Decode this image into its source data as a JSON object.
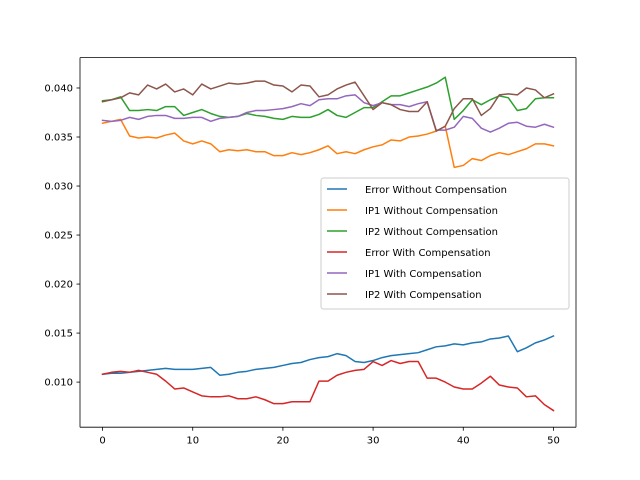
{
  "chart_data": {
    "type": "line",
    "title": "",
    "xlabel": "",
    "ylabel": "",
    "xlim": [
      -2.5,
      52.5
    ],
    "ylim": [
      0.0054,
      0.0431
    ],
    "x_ticks": [
      {
        "value": 0,
        "label": "0"
      },
      {
        "value": 10,
        "label": "10"
      },
      {
        "value": 20,
        "label": "20"
      },
      {
        "value": 30,
        "label": "30"
      },
      {
        "value": 40,
        "label": "40"
      },
      {
        "value": 50,
        "label": "50"
      }
    ],
    "y_ticks": [
      {
        "value": 0.01,
        "label": "0.010"
      },
      {
        "value": 0.015,
        "label": "0.015"
      },
      {
        "value": 0.02,
        "label": "0.020"
      },
      {
        "value": 0.025,
        "label": "0.025"
      },
      {
        "value": 0.03,
        "label": "0.030"
      },
      {
        "value": 0.035,
        "label": "0.035"
      },
      {
        "value": 0.04,
        "label": "0.040"
      }
    ],
    "grid": false,
    "legend_position": "center-right",
    "x": [
      0,
      1,
      2,
      3,
      4,
      5,
      6,
      7,
      8,
      9,
      10,
      11,
      12,
      13,
      14,
      15,
      16,
      17,
      18,
      19,
      20,
      21,
      22,
      23,
      24,
      25,
      26,
      27,
      28,
      29,
      30,
      31,
      32,
      33,
      34,
      35,
      36,
      37,
      38,
      39,
      40,
      41,
      42,
      43,
      44,
      45,
      46,
      47,
      48,
      49,
      50
    ],
    "series": [
      {
        "name": "Error Without Compensation",
        "color": "#1f77b4",
        "values": [
          0.0108,
          0.0109,
          0.0109,
          0.011,
          0.0111,
          0.0112,
          0.0113,
          0.0114,
          0.0113,
          0.0113,
          0.0113,
          0.0114,
          0.0115,
          0.0107,
          0.0108,
          0.011,
          0.0111,
          0.0113,
          0.0114,
          0.0115,
          0.0117,
          0.0119,
          0.012,
          0.0123,
          0.0125,
          0.0126,
          0.0129,
          0.0127,
          0.0121,
          0.012,
          0.0122,
          0.0125,
          0.0127,
          0.0128,
          0.0129,
          0.013,
          0.0133,
          0.0136,
          0.0137,
          0.0139,
          0.0138,
          0.014,
          0.0141,
          0.0144,
          0.0145,
          0.0147,
          0.0131,
          0.0135,
          0.014,
          0.0143,
          0.0147
        ]
      },
      {
        "name": "IP1 Without Compensation",
        "color": "#ff7f0e",
        "values": [
          0.0364,
          0.0366,
          0.0368,
          0.0351,
          0.0349,
          0.035,
          0.0349,
          0.0352,
          0.0354,
          0.0346,
          0.0343,
          0.0346,
          0.0343,
          0.0335,
          0.0337,
          0.0336,
          0.0337,
          0.0335,
          0.0335,
          0.0331,
          0.0331,
          0.0334,
          0.0332,
          0.0334,
          0.0337,
          0.0341,
          0.0333,
          0.0335,
          0.0333,
          0.0337,
          0.034,
          0.0342,
          0.0347,
          0.0346,
          0.035,
          0.0351,
          0.0353,
          0.0356,
          0.0361,
          0.0319,
          0.0321,
          0.0328,
          0.0326,
          0.0331,
          0.0334,
          0.0332,
          0.0335,
          0.0338,
          0.0343,
          0.0343,
          0.0341
        ]
      },
      {
        "name": "IP2 Without Compensation",
        "color": "#2ca02c",
        "values": [
          0.0387,
          0.0388,
          0.0391,
          0.0377,
          0.0377,
          0.0378,
          0.0377,
          0.0381,
          0.0381,
          0.0372,
          0.0375,
          0.0378,
          0.0374,
          0.0371,
          0.037,
          0.0371,
          0.0374,
          0.0372,
          0.0371,
          0.0369,
          0.0368,
          0.0371,
          0.037,
          0.037,
          0.0373,
          0.0378,
          0.0372,
          0.037,
          0.0375,
          0.038,
          0.038,
          0.0386,
          0.0392,
          0.0392,
          0.0395,
          0.0398,
          0.0401,
          0.0405,
          0.0411,
          0.0368,
          0.0377,
          0.0388,
          0.0383,
          0.0388,
          0.0392,
          0.039,
          0.0377,
          0.0379,
          0.0389,
          0.039,
          0.039
        ]
      },
      {
        "name": "Error With Compensation",
        "color": "#d62728",
        "values": [
          0.0108,
          0.011,
          0.0111,
          0.011,
          0.0112,
          0.011,
          0.0108,
          0.0101,
          0.0093,
          0.0094,
          0.009,
          0.0086,
          0.0085,
          0.0085,
          0.0086,
          0.0083,
          0.0083,
          0.0085,
          0.0082,
          0.0078,
          0.0078,
          0.008,
          0.008,
          0.008,
          0.0101,
          0.0101,
          0.0107,
          0.011,
          0.0112,
          0.0113,
          0.0121,
          0.0117,
          0.0122,
          0.0119,
          0.0121,
          0.0121,
          0.0104,
          0.0104,
          0.01,
          0.0095,
          0.0093,
          0.0093,
          0.0099,
          0.0106,
          0.0097,
          0.0095,
          0.0094,
          0.0085,
          0.0086,
          0.0077,
          0.0071
        ]
      },
      {
        "name": "IP1 With Compensation",
        "color": "#9467bd",
        "values": [
          0.0367,
          0.0366,
          0.0367,
          0.037,
          0.0368,
          0.0371,
          0.0372,
          0.0372,
          0.0369,
          0.0369,
          0.037,
          0.037,
          0.0366,
          0.0369,
          0.037,
          0.0371,
          0.0375,
          0.0377,
          0.0377,
          0.0378,
          0.0379,
          0.0381,
          0.0384,
          0.0382,
          0.0388,
          0.0389,
          0.0389,
          0.0392,
          0.0393,
          0.0385,
          0.0382,
          0.0385,
          0.0383,
          0.0383,
          0.0381,
          0.0384,
          0.0386,
          0.0357,
          0.0357,
          0.036,
          0.0371,
          0.0369,
          0.0359,
          0.0355,
          0.0359,
          0.0364,
          0.0365,
          0.0361,
          0.036,
          0.0363,
          0.036
        ]
      },
      {
        "name": "IP2 With Compensation",
        "color": "#8c564b",
        "values": [
          0.0386,
          0.0388,
          0.039,
          0.0395,
          0.0393,
          0.0403,
          0.0399,
          0.0404,
          0.0396,
          0.0399,
          0.0393,
          0.0404,
          0.0399,
          0.0402,
          0.0405,
          0.0404,
          0.0405,
          0.0407,
          0.0407,
          0.0403,
          0.0402,
          0.0396,
          0.0403,
          0.0402,
          0.0391,
          0.0393,
          0.0399,
          0.0403,
          0.0406,
          0.0392,
          0.0378,
          0.0385,
          0.0383,
          0.0378,
          0.0376,
          0.0376,
          0.0386,
          0.0356,
          0.0361,
          0.0379,
          0.0389,
          0.0389,
          0.0372,
          0.0379,
          0.0393,
          0.0394,
          0.0393,
          0.04,
          0.0398,
          0.039,
          0.0394
        ]
      }
    ]
  }
}
